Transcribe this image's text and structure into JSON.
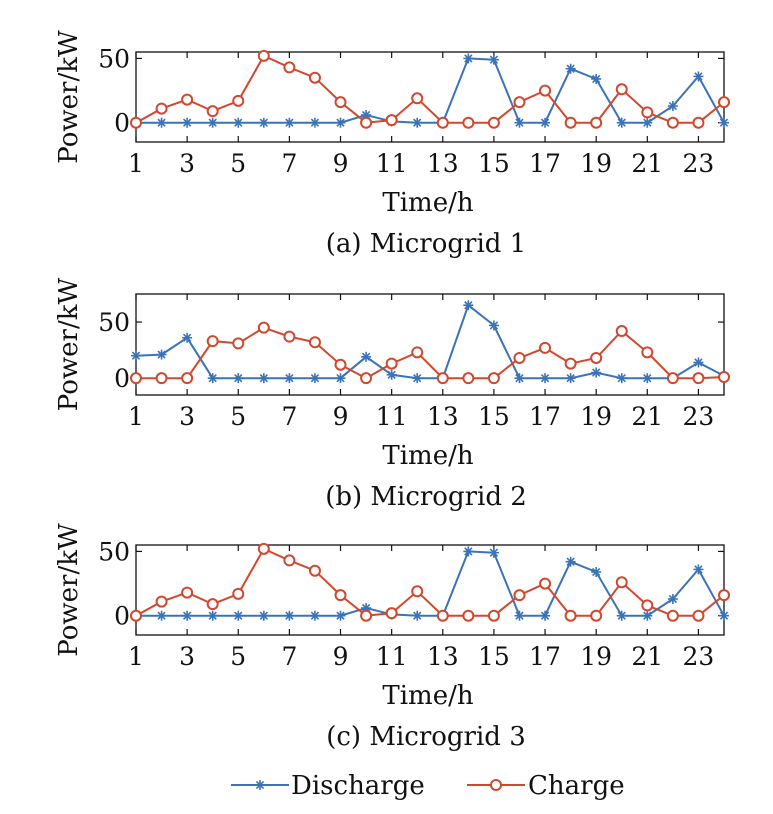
{
  "legend": {
    "position": "bottom-center"
  },
  "colors": {
    "discharge": "#3a73b8",
    "charge": "#d1482e",
    "axis": "#111111"
  },
  "chart_data": [
    {
      "type": "line",
      "caption": "(a) Microgrid 1",
      "xlabel": "Time/h",
      "ylabel": "Power/kW",
      "xlim": [
        1,
        24
      ],
      "ylim": [
        -15,
        55
      ],
      "xticks": [
        1,
        3,
        5,
        7,
        9,
        11,
        13,
        15,
        17,
        19,
        21,
        23
      ],
      "yticks": [
        0,
        50
      ],
      "grid": false,
      "x": [
        1,
        2,
        3,
        4,
        5,
        6,
        7,
        8,
        9,
        10,
        11,
        12,
        13,
        14,
        15,
        16,
        17,
        18,
        19,
        20,
        21,
        22,
        23,
        24
      ],
      "series": [
        {
          "name": "Discharge",
          "marker": "asterisk",
          "values": [
            0,
            0,
            0,
            0,
            0,
            0,
            0,
            0,
            0,
            6,
            1,
            0,
            0,
            50,
            49,
            0,
            0,
            42,
            34,
            0,
            0,
            13,
            36,
            0
          ]
        },
        {
          "name": "Charge",
          "marker": "circle",
          "values": [
            0,
            11,
            18,
            9,
            17,
            52,
            43,
            35,
            16,
            0,
            2,
            19,
            0,
            0,
            0,
            16,
            25,
            0,
            0,
            26,
            8,
            0,
            0,
            16
          ]
        }
      ]
    },
    {
      "type": "line",
      "caption": "(b) Microgrid 2",
      "xlabel": "Time/h",
      "ylabel": "Power/kW",
      "xlim": [
        1,
        24
      ],
      "ylim": [
        -15,
        75
      ],
      "xticks": [
        1,
        3,
        5,
        7,
        9,
        11,
        13,
        15,
        17,
        19,
        21,
        23
      ],
      "yticks": [
        0,
        50
      ],
      "grid": false,
      "x": [
        1,
        2,
        3,
        4,
        5,
        6,
        7,
        8,
        9,
        10,
        11,
        12,
        13,
        14,
        15,
        16,
        17,
        18,
        19,
        20,
        21,
        22,
        23,
        24
      ],
      "series": [
        {
          "name": "Discharge",
          "marker": "asterisk",
          "values": [
            20,
            21,
            36,
            0,
            0,
            0,
            0,
            0,
            0,
            19,
            3,
            0,
            0,
            65,
            47,
            0,
            0,
            0,
            5,
            0,
            0,
            0,
            14,
            2
          ]
        },
        {
          "name": "Charge",
          "marker": "circle",
          "values": [
            0,
            0,
            0,
            33,
            31,
            45,
            37,
            32,
            12,
            0,
            13,
            23,
            0,
            0,
            0,
            18,
            27,
            13,
            18,
            42,
            23,
            0,
            0,
            1
          ]
        }
      ]
    },
    {
      "type": "line",
      "caption": "(c) Microgrid 3",
      "xlabel": "Time/h",
      "ylabel": "Power/kW",
      "xlim": [
        1,
        24
      ],
      "ylim": [
        -15,
        55
      ],
      "xticks": [
        1,
        3,
        5,
        7,
        9,
        11,
        13,
        15,
        17,
        19,
        21,
        23
      ],
      "yticks": [
        0,
        50
      ],
      "grid": false,
      "x": [
        1,
        2,
        3,
        4,
        5,
        6,
        7,
        8,
        9,
        10,
        11,
        12,
        13,
        14,
        15,
        16,
        17,
        18,
        19,
        20,
        21,
        22,
        23,
        24
      ],
      "series": [
        {
          "name": "Discharge",
          "marker": "asterisk",
          "values": [
            0,
            0,
            0,
            0,
            0,
            0,
            0,
            0,
            0,
            6,
            1,
            0,
            0,
            50,
            49,
            0,
            0,
            42,
            34,
            0,
            0,
            13,
            36,
            0
          ]
        },
        {
          "name": "Charge",
          "marker": "circle",
          "values": [
            0,
            11,
            18,
            9,
            17,
            52,
            43,
            35,
            16,
            0,
            2,
            19,
            0,
            0,
            0,
            16,
            25,
            0,
            0,
            26,
            8,
            0,
            0,
            16
          ]
        }
      ]
    }
  ]
}
